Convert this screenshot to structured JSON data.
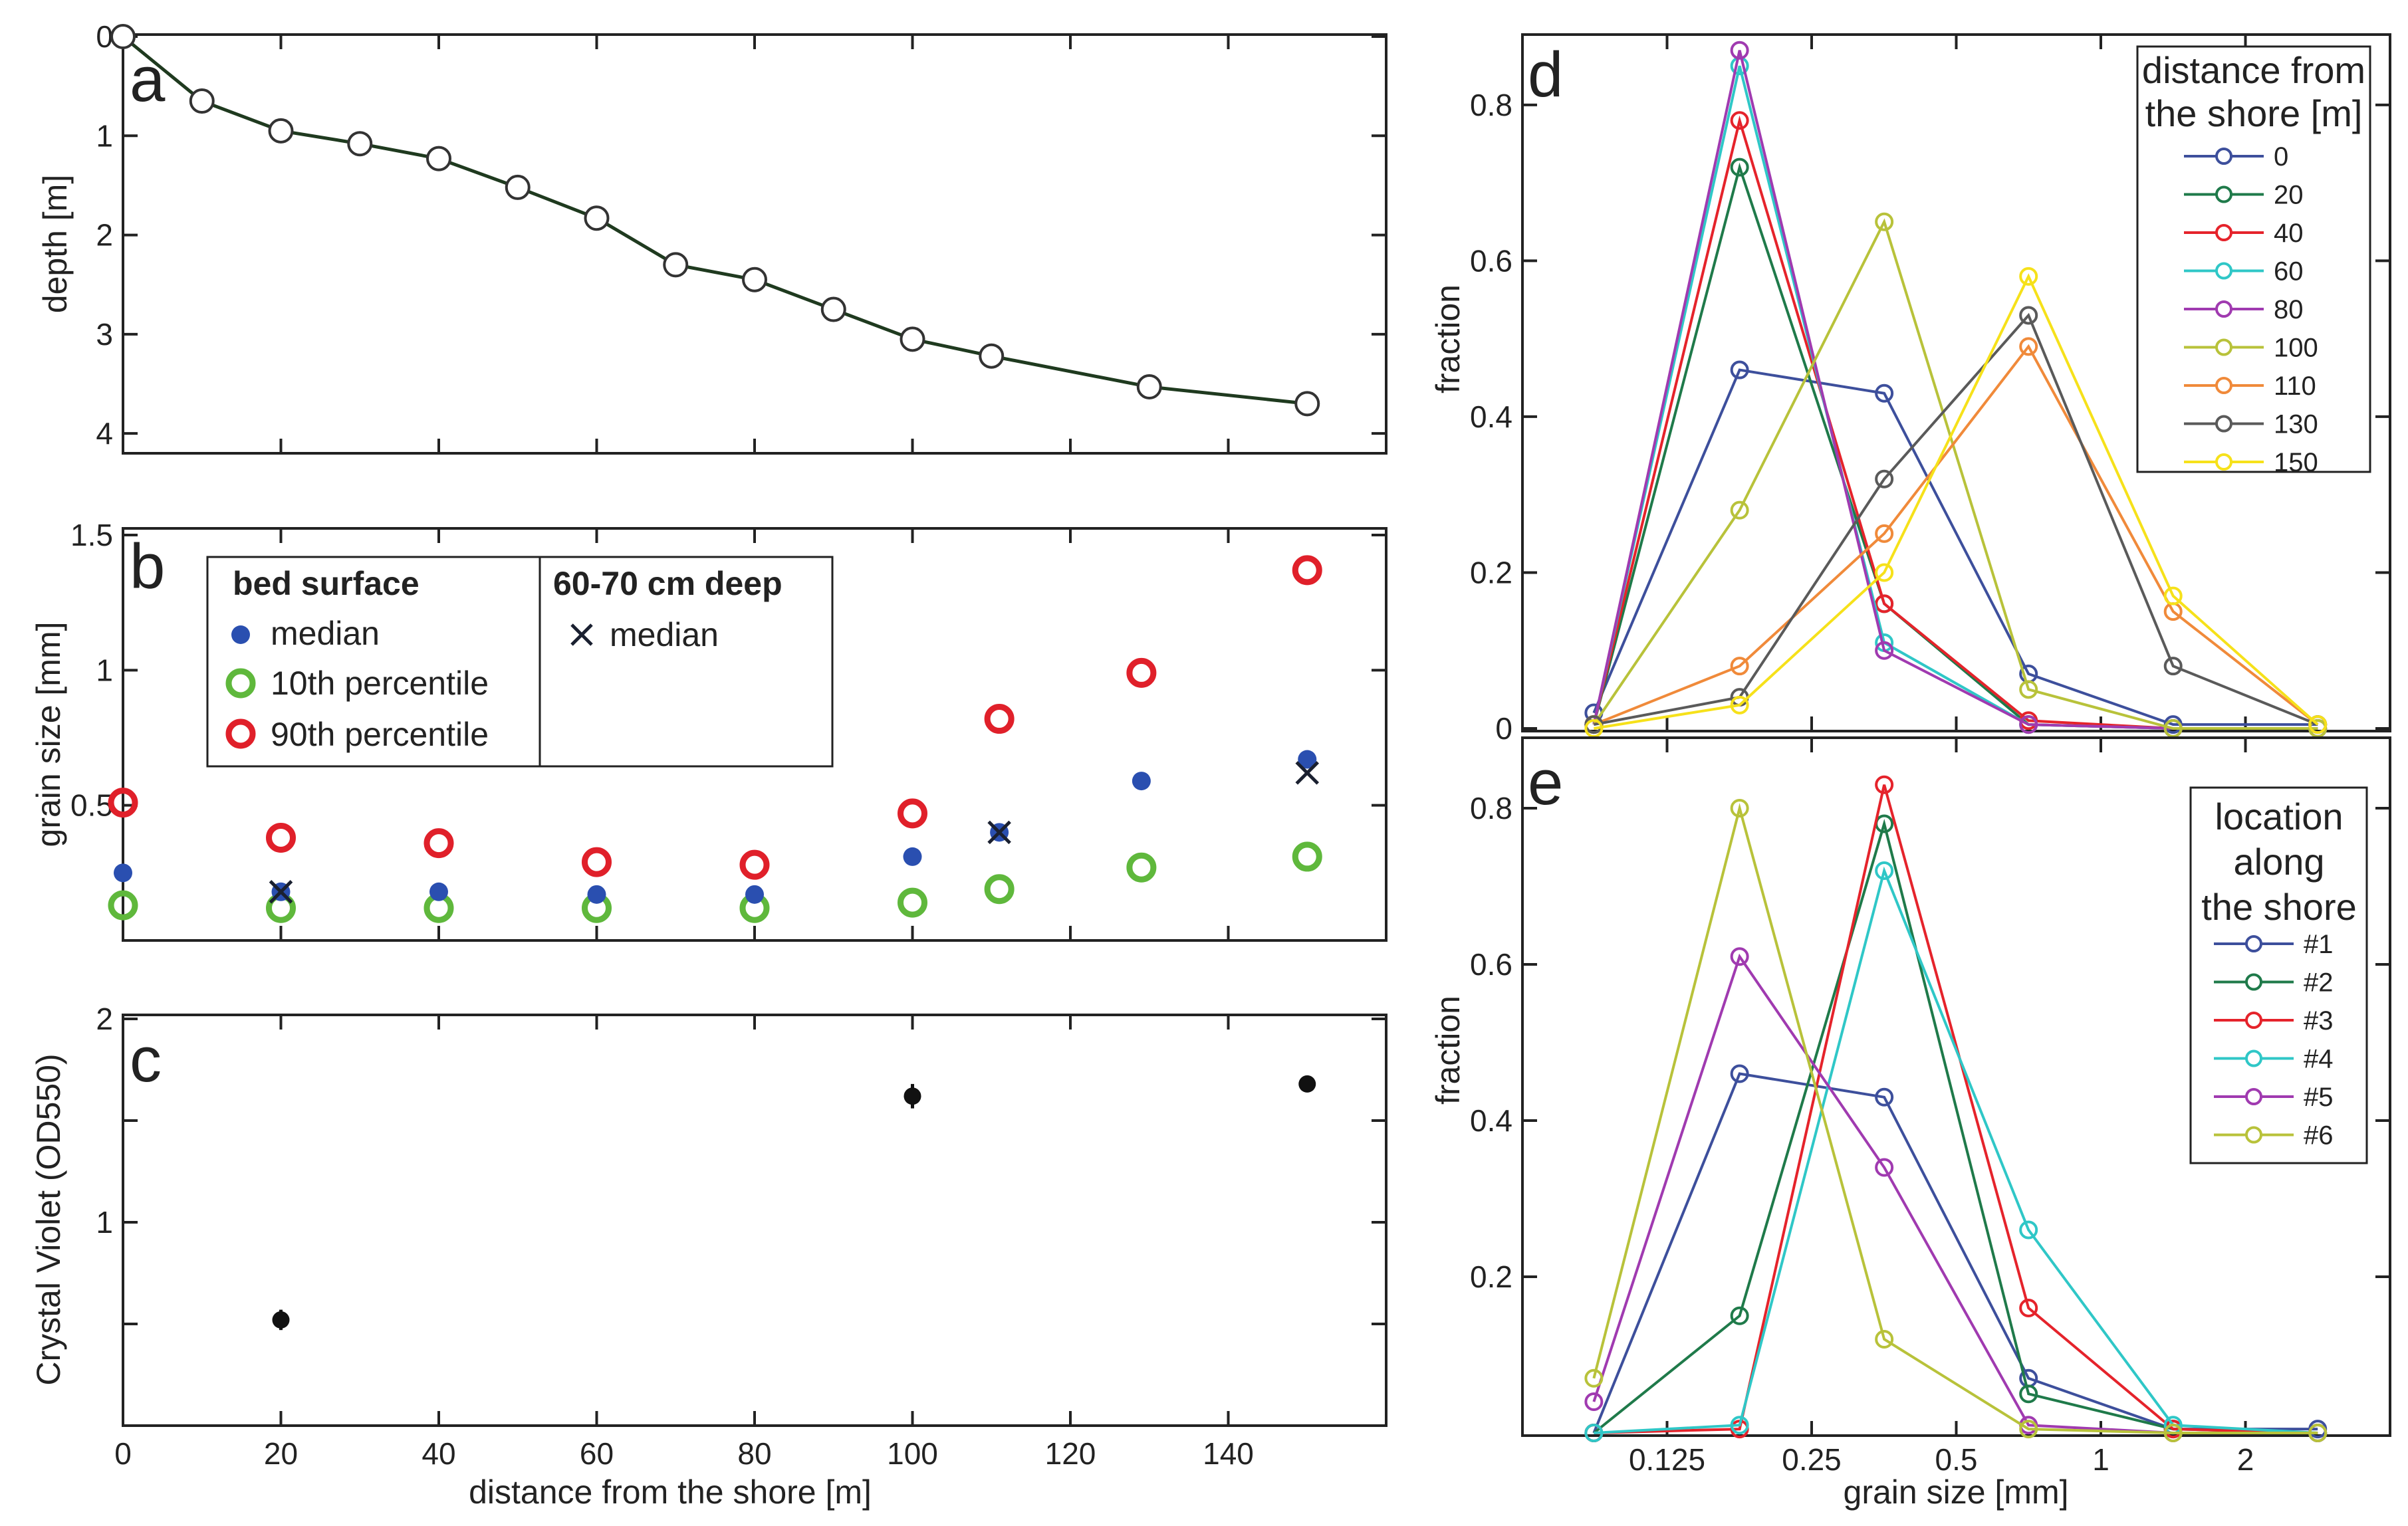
{
  "colors": {
    "frame": "#222222",
    "depth_line": "#1f3a1f",
    "median": "#2a4fb0",
    "p10": "#5fb83c",
    "p90": "#e0202a",
    "deep_median": "#1a2030",
    "cv": "#111111"
  },
  "chart_data": [
    {
      "panel": "a",
      "type": "line",
      "label": "a",
      "xlabel": "",
      "ylabel": "depth [m]",
      "xlim": [
        0,
        160
      ],
      "ylim": [
        4.2,
        0
      ],
      "yticks": [
        0,
        1,
        2,
        3,
        4
      ],
      "ytick_labels": [
        "0",
        "1",
        "2",
        "3",
        "4"
      ],
      "series": [
        {
          "name": "depth",
          "x": [
            0,
            10,
            20,
            30,
            40,
            50,
            60,
            70,
            80,
            90,
            100,
            110,
            130,
            150
          ],
          "y": [
            0.0,
            0.65,
            0.95,
            1.08,
            1.23,
            1.52,
            1.83,
            2.3,
            2.45,
            2.75,
            3.05,
            3.22,
            3.53,
            3.7
          ]
        }
      ]
    },
    {
      "panel": "b",
      "type": "scatter",
      "label": "b",
      "xlabel": "",
      "ylabel": "grain size [mm]",
      "xlim": [
        0,
        160
      ],
      "ylim": [
        0.0,
        1.5
      ],
      "yticks": [
        0.5,
        1,
        1.5
      ],
      "ytick_labels": [
        "0.5",
        "1",
        "1.5"
      ],
      "legend": {
        "title_surface": "bed surface",
        "title_deep": "60-70 cm deep",
        "median": "median",
        "p10": "10th percentile",
        "p90": "90th percentile",
        "deep_median": "median"
      },
      "series": [
        {
          "name": "median",
          "x": [
            0,
            20,
            40,
            60,
            80,
            100,
            111,
            129,
            150
          ],
          "y": [
            0.25,
            0.18,
            0.18,
            0.17,
            0.17,
            0.31,
            0.4,
            0.59,
            0.67
          ]
        },
        {
          "name": "10th percentile",
          "x": [
            0,
            20,
            40,
            60,
            80,
            100,
            111,
            129,
            150
          ],
          "y": [
            0.13,
            0.12,
            0.12,
            0.12,
            0.12,
            0.14,
            0.19,
            0.27,
            0.31
          ]
        },
        {
          "name": "90th percentile",
          "x": [
            0,
            20,
            40,
            60,
            80,
            100,
            111,
            129,
            150
          ],
          "y": [
            0.51,
            0.38,
            0.36,
            0.29,
            0.28,
            0.47,
            0.82,
            0.99,
            1.37
          ]
        },
        {
          "name": "60-70 cm deep median",
          "x": [
            20,
            111,
            150
          ],
          "y": [
            0.18,
            0.4,
            0.62
          ]
        }
      ]
    },
    {
      "panel": "c",
      "type": "scatter",
      "label": "c",
      "xlabel": "distance from the shore [m]",
      "ylabel": "Crystal Violet (OD550)",
      "xlim": [
        0,
        160
      ],
      "ylim": [
        0.0,
        2.0
      ],
      "xticks": [
        0,
        20,
        40,
        60,
        80,
        100,
        120,
        140
      ],
      "xtick_labels": [
        "0",
        "20",
        "40",
        "60",
        "80",
        "100",
        "120",
        "140"
      ],
      "yticks": [
        1,
        2
      ],
      "ytick_labels": [
        "1",
        "2"
      ],
      "series": [
        {
          "name": "Crystal Violet",
          "x": [
            20,
            100,
            150
          ],
          "y": [
            0.52,
            1.62,
            1.68
          ],
          "err": [
            0.05,
            0.06,
            0.02
          ]
        }
      ]
    },
    {
      "panel": "d",
      "type": "line",
      "label": "d",
      "xlabel": "",
      "ylabel": "fraction",
      "xscale": "log2",
      "xlim_mm": [
        0.0625,
        4.0
      ],
      "ylim": [
        0,
        0.88
      ],
      "yticks": [
        0,
        0.2,
        0.4,
        0.6,
        0.8
      ],
      "ytick_labels": [
        "0",
        "0.2",
        "0.4",
        "0.6",
        "0.8"
      ],
      "x_mm": [
        0.088,
        0.177,
        0.354,
        0.707,
        1.414,
        2.828
      ],
      "legend_title": [
        "distance from",
        "the shore [m]"
      ],
      "series": [
        {
          "name": "0",
          "color": "#3d4f9c",
          "values": [
            0.02,
            0.46,
            0.43,
            0.07,
            0.005,
            0.005
          ]
        },
        {
          "name": "20",
          "color": "#1f7a4a",
          "values": [
            0.005,
            0.72,
            0.16,
            0.005,
            0.0,
            0.0
          ]
        },
        {
          "name": "40",
          "color": "#e5232b",
          "values": [
            0.005,
            0.78,
            0.16,
            0.01,
            0.0,
            0.0
          ]
        },
        {
          "name": "60",
          "color": "#2fc7c7",
          "values": [
            0.005,
            0.85,
            0.11,
            0.005,
            0.0,
            0.0
          ]
        },
        {
          "name": "80",
          "color": "#a03ab0",
          "values": [
            0.005,
            0.87,
            0.1,
            0.005,
            0.0,
            0.0
          ]
        },
        {
          "name": "100",
          "color": "#b8c23a",
          "values": [
            0.005,
            0.28,
            0.65,
            0.05,
            0.0,
            0.0
          ]
        },
        {
          "name": "110",
          "color": "#f08a3a",
          "values": [
            0.005,
            0.08,
            0.25,
            0.49,
            0.15,
            0.005
          ]
        },
        {
          "name": "130",
          "color": "#5a5a5a",
          "values": [
            0.005,
            0.04,
            0.32,
            0.53,
            0.08,
            0.005
          ]
        },
        {
          "name": "150",
          "color": "#f6e11a",
          "values": [
            0.0,
            0.03,
            0.2,
            0.58,
            0.17,
            0.005
          ]
        }
      ]
    },
    {
      "panel": "e",
      "type": "line",
      "label": "e",
      "xlabel": "grain size [mm]",
      "ylabel": "fraction",
      "xscale": "log2",
      "xlim_mm": [
        0.0625,
        4.0
      ],
      "ylim": [
        0,
        0.88
      ],
      "yticks": [
        0.2,
        0.4,
        0.6,
        0.8
      ],
      "ytick_labels": [
        "0.2",
        "0.4",
        "0.6",
        "0.8"
      ],
      "xticks_mm": [
        0.125,
        0.25,
        0.5,
        1,
        2
      ],
      "xtick_labels": [
        "0.125",
        "0.25",
        "0.5",
        "1",
        "2"
      ],
      "x_mm": [
        0.088,
        0.177,
        0.354,
        0.707,
        1.414,
        2.828
      ],
      "legend_title": [
        "location",
        "along",
        "the shore"
      ],
      "series": [
        {
          "name": "#1",
          "color": "#3d4f9c",
          "values": [
            0.0,
            0.46,
            0.43,
            0.07,
            0.005,
            0.005
          ]
        },
        {
          "name": "#2",
          "color": "#1f7a4a",
          "values": [
            0.0,
            0.15,
            0.78,
            0.05,
            0.005,
            0.0
          ]
        },
        {
          "name": "#3",
          "color": "#e5232b",
          "values": [
            0.0,
            0.005,
            0.83,
            0.16,
            0.005,
            0.0
          ]
        },
        {
          "name": "#4",
          "color": "#2fc7c7",
          "values": [
            0.0,
            0.01,
            0.72,
            0.26,
            0.01,
            0.0
          ]
        },
        {
          "name": "#5",
          "color": "#a03ab0",
          "values": [
            0.04,
            0.61,
            0.34,
            0.01,
            0.0,
            0.0
          ]
        },
        {
          "name": "#6",
          "color": "#b8c23a",
          "values": [
            0.07,
            0.8,
            0.12,
            0.005,
            0.0,
            0.0
          ]
        }
      ]
    }
  ]
}
